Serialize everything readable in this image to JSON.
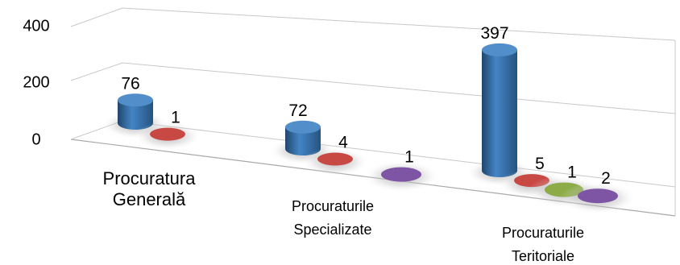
{
  "chart_data": {
    "type": "bar",
    "style": "3d-cylinder",
    "categories": [
      [
        "Procuratura",
        "Generală"
      ],
      [
        "Procuraturile",
        "Specializate"
      ],
      [
        "Procuraturile",
        "Teritoriale"
      ]
    ],
    "y_ticks": [
      "0",
      "200",
      "400"
    ],
    "ylim": [
      0,
      400
    ],
    "grid": true,
    "series": [
      {
        "color": "#3A7FC3",
        "values": [
          76,
          72,
          397
        ]
      },
      {
        "color": "#C0302A",
        "values": [
          1,
          4,
          5
        ]
      },
      {
        "color": "#7E9F2E",
        "values": [
          null,
          null,
          1
        ]
      },
      {
        "color": "#6B3E98",
        "values": [
          null,
          1,
          2
        ]
      }
    ]
  }
}
